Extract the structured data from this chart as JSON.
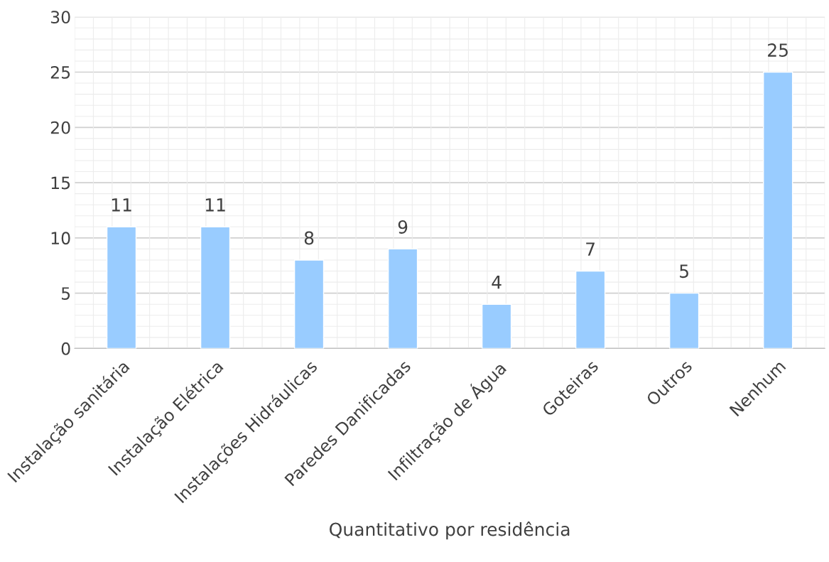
{
  "chart_data": {
    "type": "bar",
    "categories": [
      "Instalação sanitária",
      "Instalação Elétrica",
      "Instalações Hidráulicas",
      "Paredes Danificadas",
      "Infiltração de Água",
      "Goteiras",
      "Outros",
      "Nenhum"
    ],
    "values": [
      11,
      11,
      8,
      9,
      4,
      7,
      5,
      25
    ],
    "color": "#99ccff",
    "xlabel": "Quantitativo por residência",
    "ylim": [
      0,
      30
    ],
    "yticks": [
      0,
      5,
      10,
      15,
      20,
      25,
      30
    ],
    "grid": true,
    "data_labels": true
  }
}
